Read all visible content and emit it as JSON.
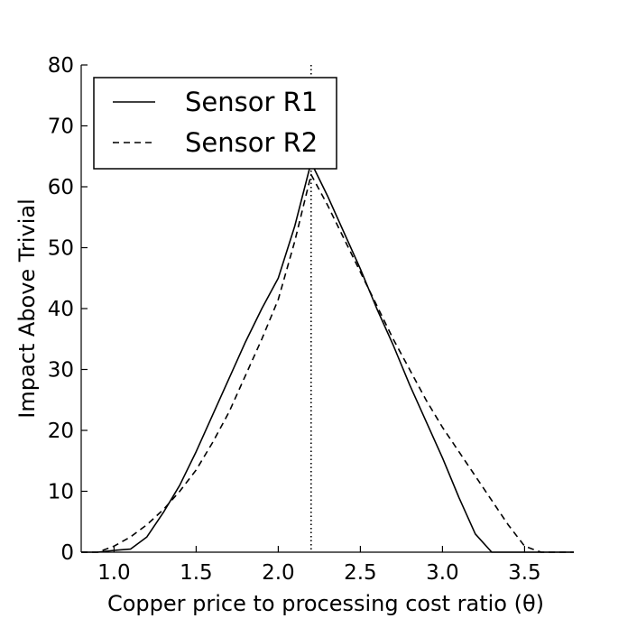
{
  "chart_data": {
    "type": "line",
    "xlabel": "Copper price to processing cost ratio (θ)",
    "ylabel": "Impact Above Trivial",
    "xlim": [
      0.8,
      3.8
    ],
    "ylim": [
      0,
      80
    ],
    "xticks": [
      "1.0",
      "1.5",
      "2.0",
      "2.5",
      "3.0",
      "3.5"
    ],
    "yticks": [
      "0",
      "10",
      "20",
      "30",
      "40",
      "50",
      "60",
      "70",
      "80"
    ],
    "grid": false,
    "legend_position": "top-left",
    "vline_x": 2.2,
    "series": [
      {
        "name": "Sensor R1",
        "style": "solid",
        "x": [
          0.8,
          0.9,
          1.0,
          1.1,
          1.2,
          1.3,
          1.4,
          1.5,
          1.6,
          1.7,
          1.8,
          1.9,
          2.0,
          2.1,
          2.2,
          2.3,
          2.4,
          2.5,
          2.6,
          2.7,
          2.8,
          2.9,
          3.0,
          3.1,
          3.2,
          3.3,
          3.4,
          3.5,
          3.6,
          3.7,
          3.8
        ],
        "y": [
          0.0,
          0.0,
          0.3,
          0.5,
          2.5,
          6.5,
          11.0,
          16.5,
          22.5,
          28.5,
          34.5,
          40.0,
          45.0,
          53.5,
          64.0,
          58.5,
          52.5,
          46.5,
          40.0,
          34.0,
          27.5,
          21.5,
          15.5,
          9.0,
          3.0,
          0.0,
          0.0,
          0.0,
          0.0,
          0.0,
          0.0
        ]
      },
      {
        "name": "Sensor R2",
        "style": "dashed",
        "x": [
          0.8,
          0.9,
          1.0,
          1.1,
          1.2,
          1.3,
          1.4,
          1.5,
          1.6,
          1.7,
          1.8,
          1.9,
          2.0,
          2.1,
          2.2,
          2.3,
          2.4,
          2.5,
          2.6,
          2.7,
          2.8,
          2.9,
          3.0,
          3.1,
          3.2,
          3.3,
          3.4,
          3.5,
          3.6,
          3.7,
          3.8
        ],
        "y": [
          0.0,
          0.0,
          1.0,
          2.5,
          4.5,
          7.0,
          10.0,
          13.5,
          18.0,
          23.0,
          29.0,
          35.0,
          41.5,
          51.0,
          62.0,
          57.0,
          51.5,
          46.0,
          40.5,
          35.0,
          30.0,
          25.0,
          20.5,
          16.5,
          12.5,
          8.5,
          4.5,
          1.0,
          0.0,
          0.0,
          0.0
        ]
      }
    ]
  }
}
